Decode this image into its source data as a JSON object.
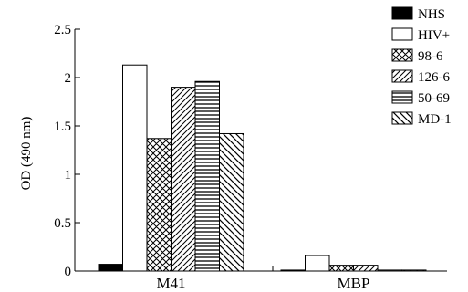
{
  "chart_data": {
    "type": "bar",
    "title": "",
    "xlabel": "",
    "ylabel": "OD (490 nm)",
    "ylim": [
      0,
      2.5
    ],
    "yticks": [
      0,
      0.5,
      1,
      1.5,
      2,
      2.5
    ],
    "ytick_labels": [
      "0",
      "0.5",
      "1",
      "1.5",
      "2",
      "2.5"
    ],
    "grid": false,
    "legend_position": "top-right",
    "categories": [
      "M41",
      "MBP"
    ],
    "series": [
      {
        "name": "NHS",
        "values": [
          0.07,
          0.01
        ],
        "pattern": "solid"
      },
      {
        "name": "HIV+",
        "values": [
          2.13,
          0.16
        ],
        "pattern": "empty"
      },
      {
        "name": "98-6",
        "values": [
          1.37,
          0.06
        ],
        "pattern": "crosshatch"
      },
      {
        "name": "126-6",
        "values": [
          1.9,
          0.06
        ],
        "pattern": "diagonal"
      },
      {
        "name": "50-69",
        "values": [
          1.96,
          0.01
        ],
        "pattern": "horizontal"
      },
      {
        "name": "MD-1",
        "values": [
          1.42,
          0.01
        ],
        "pattern": "backdiagonal"
      }
    ]
  }
}
